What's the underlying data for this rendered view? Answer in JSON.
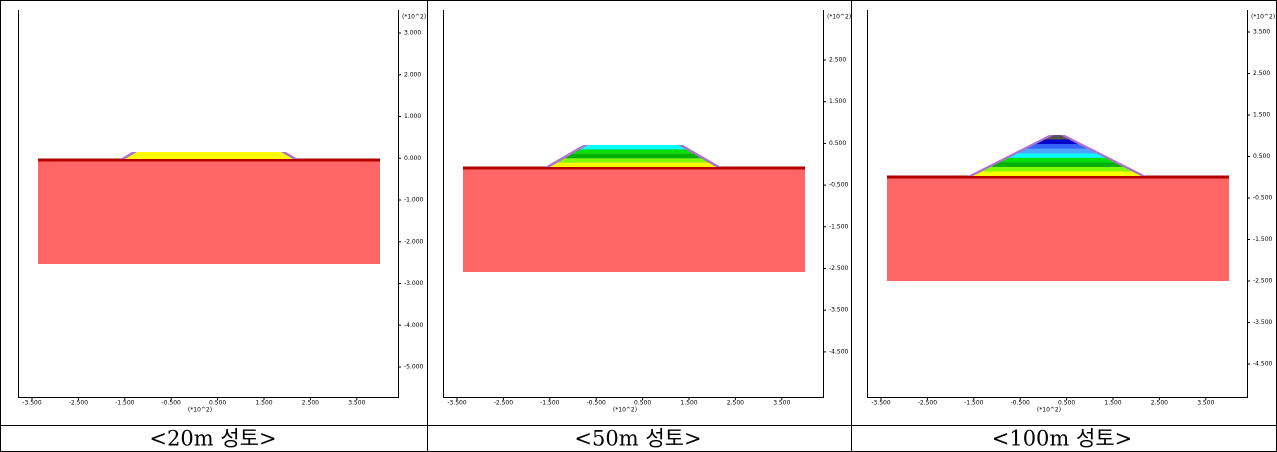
{
  "panels": [
    {
      "caption": "<20m 성토>",
      "scale_label_x": "(*10^2)",
      "scale_label_y": "(*10^2)",
      "xticks": [
        "-3.500",
        "-2.500",
        "-1.500",
        "-0.500",
        "0.500",
        "1.500",
        "2.500",
        "3.500"
      ],
      "yticks": [
        "3.000",
        "2.000",
        "1.000",
        "0.000",
        "-1.000",
        "-2.000",
        "-3.000",
        "-4.000",
        "-5.000"
      ]
    },
    {
      "caption": "<50m 성토>",
      "scale_label_x": "(*10^2)",
      "scale_label_y": "(*10^2)",
      "xticks": [
        "-3.500",
        "-2.500",
        "-1.500",
        "-0.500",
        "0.500",
        "1.500",
        "2.500",
        "3.500"
      ],
      "yticks": [
        "2.500",
        "1.500",
        "0.500",
        "-0.500",
        "-1.500",
        "-2.500",
        "-3.500",
        "-4.500"
      ]
    },
    {
      "caption": "<100m 성토>",
      "scale_label_x": "(*10^2)",
      "scale_label_y": "(*10^2)",
      "xticks": [
        "-3.500",
        "-2.500",
        "-1.500",
        "-0.500",
        "0.500",
        "1.500",
        "2.500",
        "3.500"
      ],
      "yticks": [
        "3.500",
        "2.500",
        "1.500",
        "0.500",
        "-0.500",
        "-1.500",
        "-2.500",
        "-3.500",
        "-4.500"
      ]
    }
  ]
}
